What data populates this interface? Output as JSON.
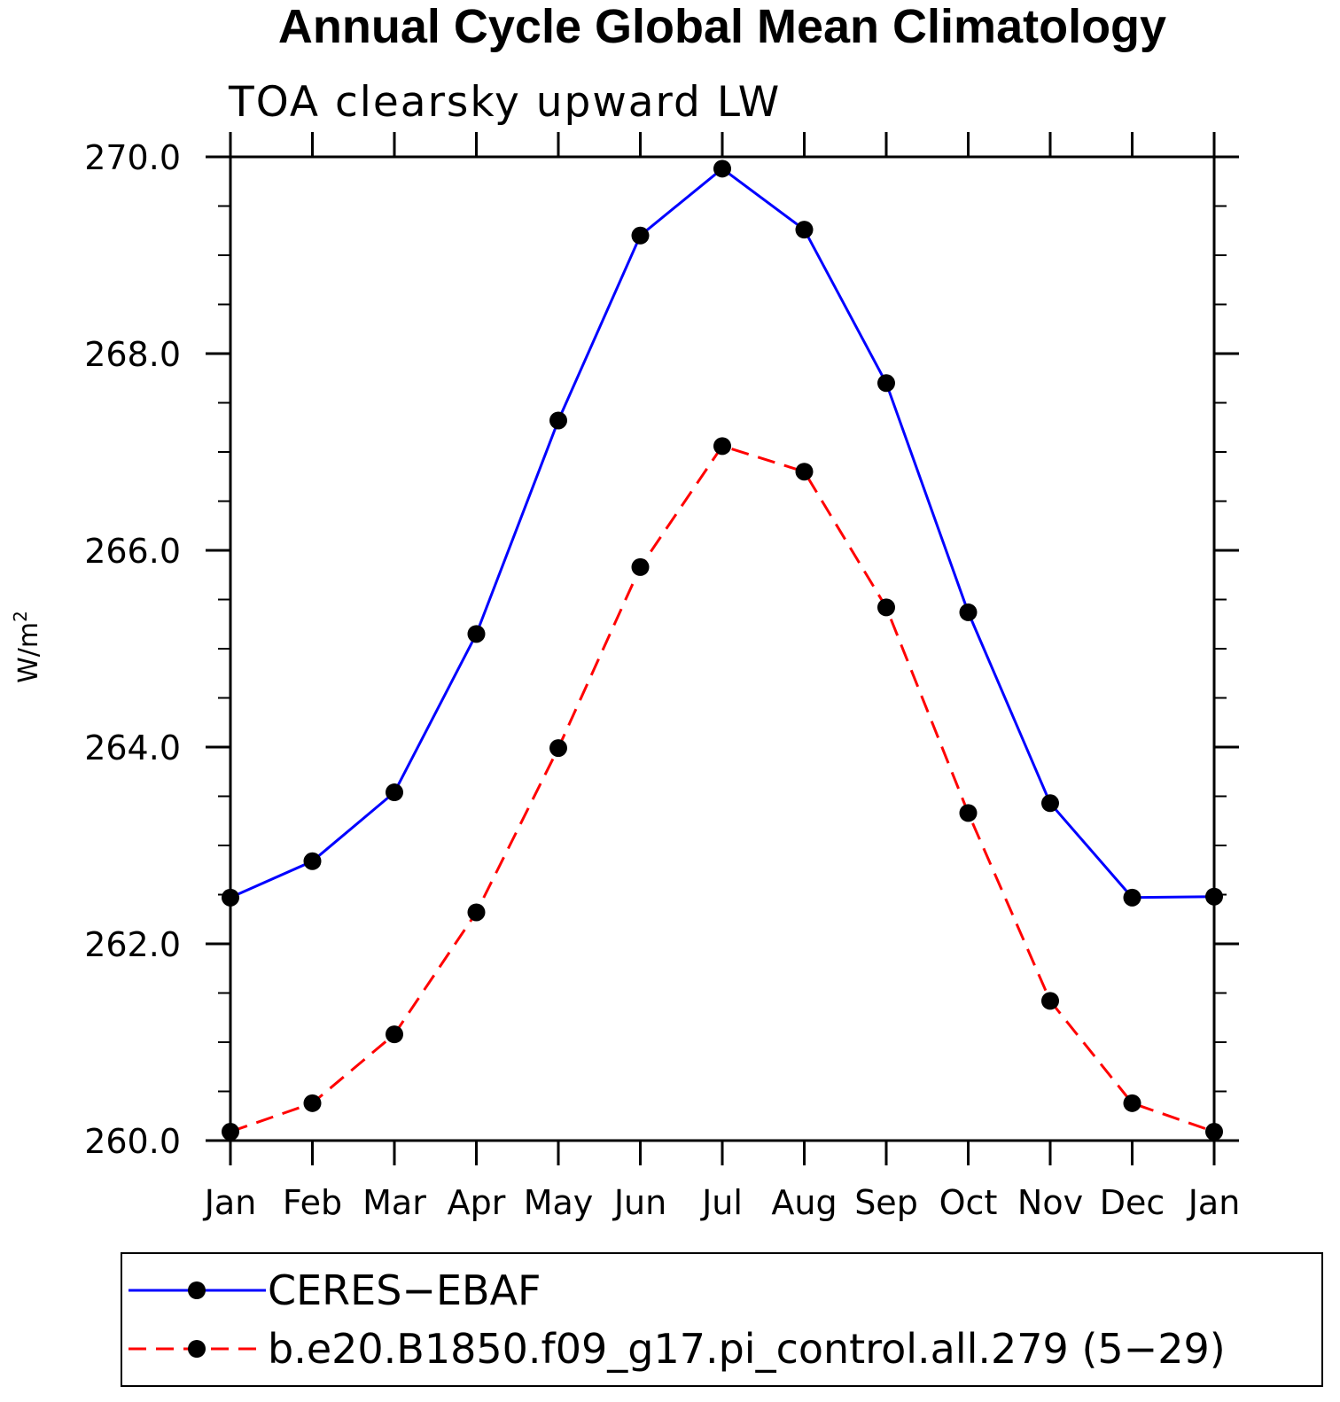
{
  "chart_data": {
    "type": "line",
    "title": "Annual Cycle Global Mean Climatology",
    "subtitle": "TOA clearsky upward LW",
    "ylabel": "W/m",
    "ylabel_superscript": "2",
    "xlabel": "",
    "categories": [
      "Jan",
      "Feb",
      "Mar",
      "Apr",
      "May",
      "Jun",
      "Jul",
      "Aug",
      "Sep",
      "Oct",
      "Nov",
      "Dec",
      "Jan"
    ],
    "ylim": [
      260.0,
      270.0
    ],
    "yticks": [
      "260.0",
      "262.0",
      "264.0",
      "266.0",
      "268.0",
      "270.0"
    ],
    "legend_position": "bottom",
    "grid": false,
    "series": [
      {
        "name": "CERES−EBAF",
        "color": "#0000ff",
        "style": "solid",
        "marker": "filled-circle",
        "values": [
          262.47,
          262.84,
          263.54,
          265.15,
          267.32,
          269.2,
          269.88,
          269.26,
          267.7,
          265.37,
          263.43,
          262.47,
          262.48
        ]
      },
      {
        "name": "b.e20.B1850.f09_g17.pi_control.all.279 (5−29)",
        "color": "#ff0000",
        "style": "dashed",
        "marker": "filled-circle",
        "values": [
          260.09,
          260.38,
          261.08,
          262.32,
          263.99,
          265.83,
          267.06,
          266.8,
          265.42,
          263.33,
          261.42,
          260.38,
          260.09
        ]
      }
    ]
  }
}
